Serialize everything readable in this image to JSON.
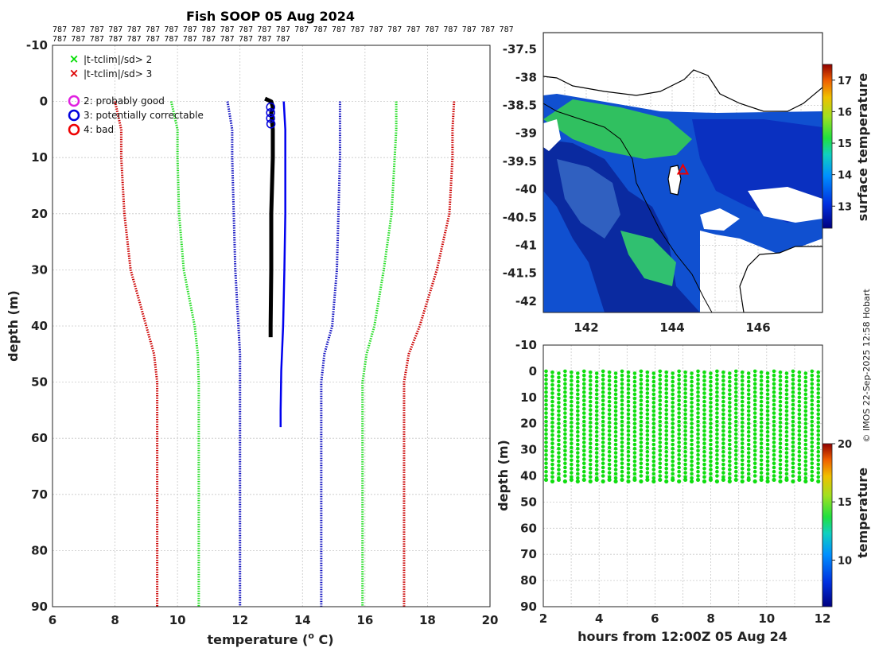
{
  "colors": {
    "qc2": "#00dd00",
    "qc3": "#dd0000",
    "flag2": "#e020e0",
    "flag3": "#0000dd",
    "flag4": "#ee0000",
    "clim_inner": "#1010c0",
    "clim_mid": "#22dd22",
    "clim_outer": "#cc0000",
    "profile_main": "#0000ee",
    "profile_measured": "#000000",
    "scatter": "#10dd10"
  },
  "header": {
    "title": "Fish SOOP 05 Aug 2024",
    "code_row1": [
      "787",
      "787",
      "787",
      "787",
      "787",
      "787",
      "787",
      "787",
      "787",
      "787",
      "787",
      "787",
      "787",
      "787",
      "787",
      "787",
      "787",
      "787",
      "787",
      "787",
      "787",
      "787",
      "787",
      "787",
      "787"
    ],
    "code_row2": [
      "787",
      "787",
      "787",
      "787",
      "787",
      "787",
      "787",
      "787",
      "787",
      "787",
      "787",
      "787",
      "787"
    ]
  },
  "credit": "© IMOS 22-Sep-2025 12:58 Hobart",
  "chart_data": [
    {
      "type": "line",
      "name": "profile",
      "xlabel": "temperature (",
      "xlabel_sup": "o",
      "xlabel_unit": " C)",
      "ylabel": "depth (m)",
      "xlim": [
        6,
        20
      ],
      "ylim": [
        -10,
        90
      ],
      "xticks": [
        6,
        8,
        10,
        12,
        14,
        16,
        18,
        20
      ],
      "yticks": [
        -10,
        0,
        10,
        20,
        30,
        40,
        50,
        60,
        70,
        80,
        90
      ],
      "grid": true,
      "legend_qc": [
        {
          "marker": "x",
          "label": "|t-tclim|/sd> 2",
          "color": "#00dd00"
        },
        {
          "marker": "x",
          "label": "|t-tclim|/sd> 3",
          "color": "#dd0000"
        }
      ],
      "legend_flags": [
        {
          "marker": "o",
          "label": "2: probably good",
          "color": "#e020e0"
        },
        {
          "marker": "o",
          "label": "3: potentially correctable",
          "color": "#0000dd"
        },
        {
          "marker": "o",
          "label": "4: bad",
          "color": "#ee0000"
        }
      ],
      "series": [
        {
          "name": "climatology -3sd",
          "style": "dotted",
          "color": "#cc0000",
          "depth": [
            0,
            5,
            10,
            20,
            30,
            40,
            45,
            50,
            90
          ],
          "temp": [
            8.0,
            8.2,
            8.2,
            8.3,
            8.5,
            9.0,
            9.25,
            9.35,
            9.35
          ]
        },
        {
          "name": "climatology -2sd",
          "style": "dotted",
          "color": "#22dd22",
          "depth": [
            0,
            5,
            10,
            20,
            30,
            40,
            45,
            50,
            90
          ],
          "temp": [
            9.8,
            10.0,
            10.0,
            10.05,
            10.2,
            10.55,
            10.65,
            10.68,
            10.68
          ]
        },
        {
          "name": "climatology -1sd",
          "style": "dotted",
          "color": "#1010c0",
          "depth": [
            0,
            5,
            10,
            20,
            30,
            40,
            45,
            50,
            90
          ],
          "temp": [
            11.6,
            11.75,
            11.75,
            11.8,
            11.85,
            11.95,
            12.0,
            12.0,
            12.0
          ]
        },
        {
          "name": "climatology +1sd",
          "style": "dotted",
          "color": "#1010c0",
          "depth": [
            0,
            5,
            10,
            20,
            30,
            40,
            45,
            50,
            90
          ],
          "temp": [
            15.2,
            15.2,
            15.2,
            15.15,
            15.1,
            14.95,
            14.7,
            14.6,
            14.6
          ]
        },
        {
          "name": "climatology +2sd",
          "style": "dotted",
          "color": "#22dd22",
          "depth": [
            0,
            5,
            10,
            20,
            30,
            40,
            45,
            50,
            90
          ],
          "temp": [
            17.0,
            17.0,
            16.95,
            16.85,
            16.6,
            16.3,
            16.05,
            15.92,
            15.92
          ]
        },
        {
          "name": "climatology +3sd",
          "style": "dotted",
          "color": "#cc0000",
          "depth": [
            0,
            5,
            10,
            20,
            30,
            40,
            45,
            50,
            90
          ],
          "temp": [
            18.85,
            18.8,
            18.8,
            18.7,
            18.3,
            17.75,
            17.4,
            17.25,
            17.25
          ]
        },
        {
          "name": "climatology mean",
          "style": "solid",
          "color": "#0000ee",
          "depth": [
            0,
            5,
            10,
            20,
            30,
            40,
            48,
            55,
            58
          ],
          "temp": [
            13.4,
            13.45,
            13.45,
            13.45,
            13.42,
            13.38,
            13.32,
            13.3,
            13.3
          ]
        },
        {
          "name": "profile",
          "style": "solid",
          "color": "#000000",
          "depth": [
            -0.5,
            0,
            1,
            2,
            5,
            10,
            20,
            30,
            40,
            42
          ],
          "temp": [
            12.8,
            13.0,
            13.05,
            13.0,
            13.05,
            13.05,
            13.0,
            13.0,
            12.98,
            12.98
          ]
        }
      ],
      "flag_markers": [
        {
          "temp": 12.98,
          "depth": 1,
          "flag": 3
        },
        {
          "temp": 12.98,
          "depth": 2,
          "flag": 3
        },
        {
          "temp": 12.98,
          "depth": 3,
          "flag": 3
        },
        {
          "temp": 12.99,
          "depth": 4,
          "flag": 3
        }
      ]
    },
    {
      "type": "heatmap",
      "name": "map",
      "xlim": [
        141,
        147.5
      ],
      "ylim": [
        -42.2,
        -37.2
      ],
      "xticks": [
        142,
        144,
        146
      ],
      "yticks": [
        -37.5,
        -38,
        -38.5,
        -39,
        -39.5,
        -40,
        -40.5,
        -41,
        -41.5,
        -42
      ],
      "colorbar_label": "surface temperature",
      "colorbar_range": [
        12.3,
        17.5
      ],
      "colorbar_ticks": [
        13,
        14,
        15,
        16,
        17
      ],
      "station": {
        "lon": 144.25,
        "lat": -39.65,
        "marker": "triangle"
      }
    },
    {
      "type": "scatter",
      "name": "timeseries",
      "xlabel": "hours from 12:00Z 05 Aug 24",
      "ylabel": "depth (m)",
      "xlim": [
        2,
        12
      ],
      "ylim": [
        -10,
        90
      ],
      "xticks": [
        2,
        4,
        6,
        8,
        10,
        12
      ],
      "yticks": [
        -10,
        0,
        10,
        20,
        30,
        40,
        50,
        60,
        70,
        80,
        90
      ],
      "colorbar_label": "temperature",
      "colorbar_range": [
        6,
        20
      ],
      "colorbar_ticks": [
        10,
        15,
        20
      ],
      "casts": {
        "start_hour": 2.1,
        "end_hour": 11.85,
        "count": 44,
        "top_depth": 0,
        "bottom_depth": 41.5,
        "temp": 13
      }
    }
  ]
}
